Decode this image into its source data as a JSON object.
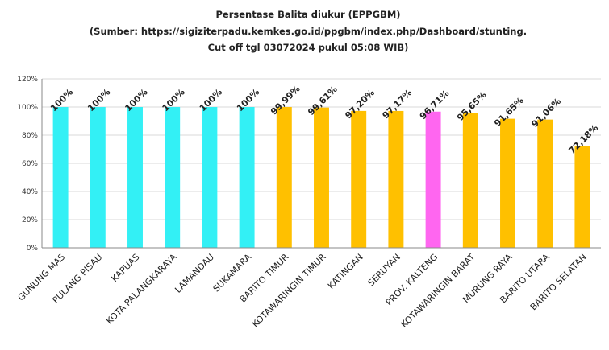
{
  "chart_data": {
    "type": "bar",
    "title": "Persentase Balita diukur (EPPGBM)",
    "subtitle_lines": [
      "(Sumber: https://sigiziterpadu.kemkes.go.id/ppgbm/index.php/Dashboard/stunting.",
      "Cut off tgl 03072024 pukul 05:08 WIB)"
    ],
    "categories": [
      "GUNUNG MAS",
      "PULANG PISAU",
      "KAPUAS",
      "KOTA PALANGKARAYA",
      "LAMANDAU",
      "SUKAMARA",
      "BARITO TIMUR",
      "KOTAWARINGIN TIMUR",
      "KATINGAN",
      "SERUYAN",
      "PROV. KALTENG",
      "KOTAWARINGIN BARAT",
      "MURUNG RAYA",
      "BARITO UTARA",
      "BARITO SELATAN"
    ],
    "values": [
      100,
      100,
      100,
      100,
      100,
      100,
      99.99,
      99.61,
      97.2,
      97.17,
      96.71,
      95.65,
      91.65,
      91.06,
      72.18
    ],
    "data_labels": [
      "100%",
      "100%",
      "100%",
      "100%",
      "100%",
      "100%",
      "99,99%",
      "99,61%",
      "97,20%",
      "97,17%",
      "96,71%",
      "95,65%",
      "91,65%",
      "91,06%",
      "72,18%"
    ],
    "bar_colors": [
      "#33f0f5",
      "#33f0f5",
      "#33f0f5",
      "#33f0f5",
      "#33f0f5",
      "#33f0f5",
      "#ffc000",
      "#ffc000",
      "#ffc000",
      "#ffc000",
      "#ff66f0",
      "#ffc000",
      "#ffc000",
      "#ffc000",
      "#ffc000"
    ],
    "ylim": [
      0,
      120
    ],
    "yticks": [
      0,
      20,
      40,
      60,
      80,
      100,
      120
    ],
    "ytick_labels": [
      "0%",
      "20%",
      "40%",
      "60%",
      "80%",
      "100%",
      "120%"
    ],
    "grid": true,
    "legend": "none",
    "xlabel": "",
    "ylabel": ""
  }
}
